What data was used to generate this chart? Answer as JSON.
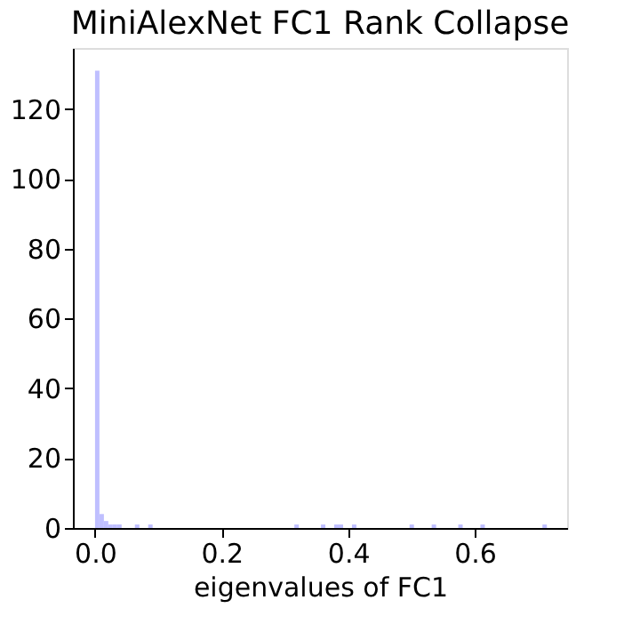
{
  "chart_data": {
    "type": "histogram",
    "title": "MiniAlexNet FC1 Rank Collapse",
    "xlabel": "eigenvalues of FC1",
    "color": "#bfbfff",
    "bins": [
      0,
      0.007,
      0.014,
      0.021,
      0.028,
      0.035,
      0.042,
      0.063,
      0.07,
      0.084,
      0.091,
      0.315,
      0.322,
      0.357,
      0.364,
      0.378,
      0.385,
      0.392,
      0.406,
      0.413,
      0.497,
      0.504,
      0.532,
      0.539,
      0.574,
      0.581,
      0.609,
      0.616,
      0.707,
      0.714
    ],
    "values": [
      131,
      4,
      2,
      1,
      1,
      1,
      0,
      1,
      0,
      1,
      0,
      1,
      0,
      1,
      0,
      1,
      1,
      0,
      1,
      0,
      1,
      0,
      1,
      0,
      1,
      0,
      1,
      0,
      1
    ],
    "xlim": [
      -0.035,
      0.746
    ],
    "ylim": [
      0,
      137.5
    ],
    "xticks": [
      {
        "value": 0,
        "label": "0.0"
      },
      {
        "value": 0.2,
        "label": "0.2"
      },
      {
        "value": 0.4,
        "label": "0.4"
      },
      {
        "value": 0.6,
        "label": "0.6"
      }
    ],
    "yticks": [
      0,
      20,
      40,
      60,
      80,
      100,
      120
    ],
    "grid": false
  }
}
